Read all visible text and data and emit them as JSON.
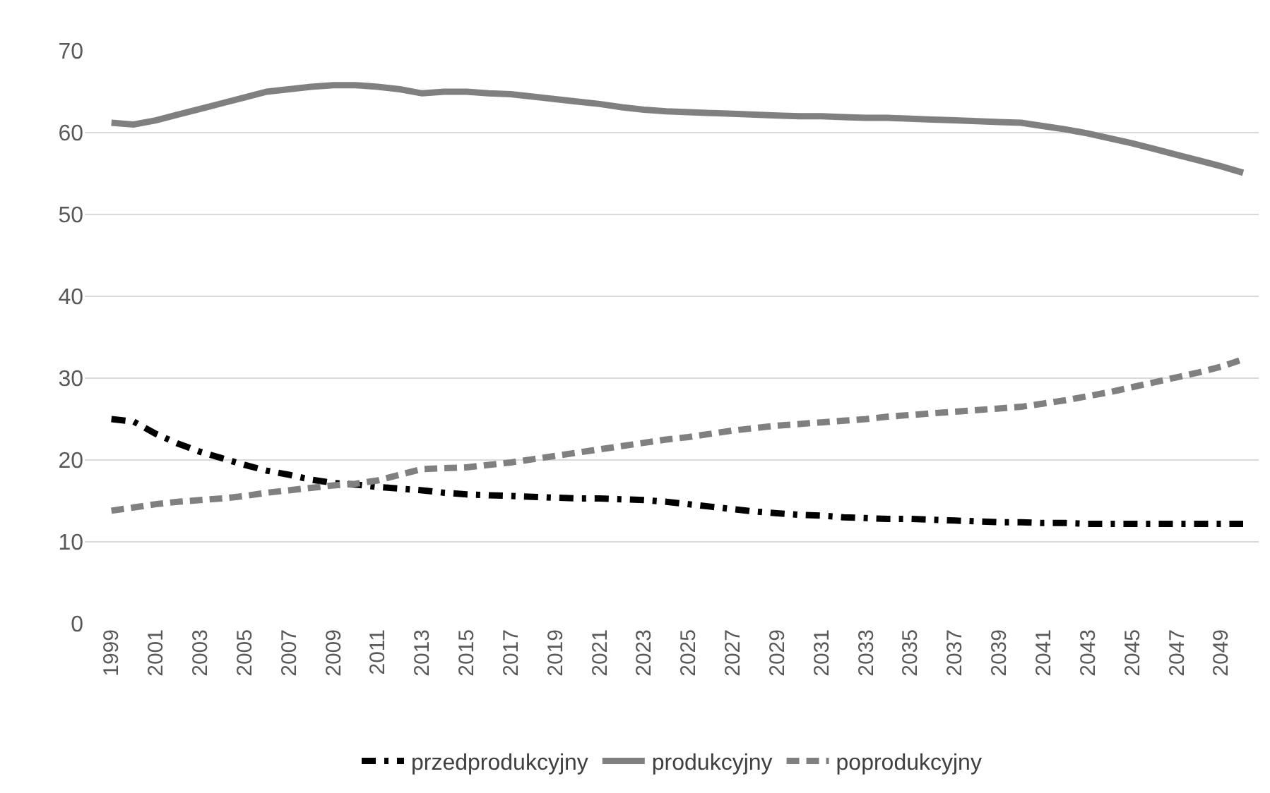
{
  "chart_data": {
    "type": "line",
    "categories": [
      "1999",
      null,
      "2001",
      null,
      "2003",
      null,
      "2005",
      null,
      "2007",
      null,
      "2009",
      null,
      "2011",
      null,
      "2013",
      null,
      "2015",
      null,
      "2017",
      null,
      "2019",
      null,
      "2021",
      null,
      "2023",
      null,
      "2025",
      null,
      "2027",
      null,
      "2029",
      null,
      "2031",
      null,
      "2033",
      null,
      "2035",
      null,
      "2037",
      null,
      "2039",
      null,
      "2041",
      null,
      "2043",
      null,
      "2045",
      null,
      "2047",
      null,
      "2049",
      null
    ],
    "series": [
      {
        "name": "przedprodukcyjny",
        "color": "#000000",
        "line_style": "dashdot",
        "values": [
          25.0,
          24.7,
          23.2,
          22.0,
          21.0,
          20.2,
          19.4,
          18.7,
          18.2,
          17.6,
          17.2,
          17.0,
          16.7,
          16.5,
          16.3,
          16.0,
          15.8,
          15.7,
          15.6,
          15.5,
          15.4,
          15.3,
          15.3,
          15.2,
          15.1,
          14.9,
          14.6,
          14.3,
          14.0,
          13.7,
          13.5,
          13.3,
          13.2,
          13.0,
          12.9,
          12.8,
          12.8,
          12.7,
          12.6,
          12.5,
          12.4,
          12.4,
          12.3,
          12.3,
          12.2,
          12.2,
          12.2,
          12.2,
          12.2,
          12.2,
          12.2,
          12.2
        ]
      },
      {
        "name": "produkcyjny",
        "color": "#808080",
        "line_style": "solid",
        "values": [
          61.2,
          61.0,
          61.5,
          62.2,
          62.9,
          63.6,
          64.3,
          65.0,
          65.3,
          65.6,
          65.8,
          65.8,
          65.6,
          65.3,
          64.8,
          65.0,
          65.0,
          64.8,
          64.7,
          64.4,
          64.1,
          63.8,
          63.5,
          63.1,
          62.8,
          62.6,
          62.5,
          62.4,
          62.3,
          62.2,
          62.1,
          62.0,
          62.0,
          61.9,
          61.8,
          61.8,
          61.7,
          61.6,
          61.5,
          61.4,
          61.3,
          61.2,
          60.8,
          60.4,
          59.9,
          59.3,
          58.7,
          58.0,
          57.3,
          56.6,
          55.9,
          55.1
        ]
      },
      {
        "name": "poprodukcyjny",
        "color": "#808080",
        "line_style": "dashed",
        "values": [
          13.8,
          14.2,
          14.6,
          14.9,
          15.1,
          15.3,
          15.6,
          16.0,
          16.3,
          16.6,
          16.9,
          17.1,
          17.5,
          18.2,
          18.9,
          19.0,
          19.1,
          19.4,
          19.7,
          20.1,
          20.5,
          20.9,
          21.3,
          21.7,
          22.1,
          22.5,
          22.8,
          23.2,
          23.6,
          23.9,
          24.2,
          24.4,
          24.6,
          24.8,
          25.0,
          25.3,
          25.5,
          25.7,
          25.9,
          26.1,
          26.3,
          26.5,
          26.9,
          27.3,
          27.8,
          28.3,
          28.9,
          29.5,
          30.1,
          30.7,
          31.4,
          32.3
        ]
      }
    ],
    "ylim": [
      0,
      70
    ],
    "yticks": [
      0,
      10,
      20,
      30,
      40,
      50,
      60,
      70
    ],
    "grid": "y",
    "legend": "bottom",
    "marker": "none"
  }
}
